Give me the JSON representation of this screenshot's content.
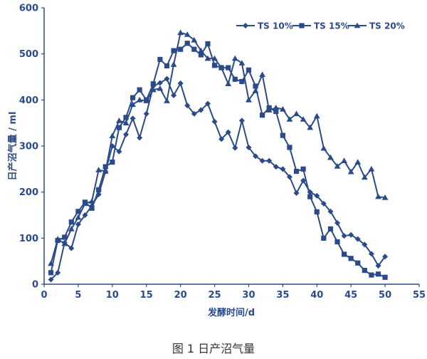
{
  "chart_data": {
    "type": "line",
    "xlabel": "发酵时间/d",
    "ylabel": "日产沼气量 / ml",
    "caption": "图 1 日产沼气量",
    "xlim": [
      0,
      55
    ],
    "ylim": [
      0,
      600
    ],
    "xticks": [
      0,
      5,
      10,
      15,
      20,
      25,
      30,
      35,
      40,
      45,
      50,
      55
    ],
    "yticks": [
      0,
      100,
      200,
      300,
      400,
      500,
      600
    ],
    "grid": false,
    "legend_position": "top-right",
    "color": "#2b4a8a",
    "series": [
      {
        "name": "TS 10%",
        "marker": "diamond",
        "x": [
          1,
          2,
          3,
          4,
          5,
          6,
          7,
          8,
          9,
          10,
          11,
          12,
          13,
          14,
          15,
          16,
          17,
          18,
          19,
          20,
          21,
          22,
          23,
          24,
          25,
          26,
          27,
          28,
          29,
          30,
          31,
          32,
          33,
          34,
          35,
          36,
          37,
          38,
          39,
          40,
          41,
          42,
          43,
          44,
          45,
          46,
          47,
          48,
          49,
          50
        ],
        "y": [
          10,
          25,
          90,
          78,
          130,
          150,
          170,
          195,
          245,
          300,
          288,
          325,
          360,
          318,
          370,
          430,
          437,
          446,
          410,
          436,
          388,
          370,
          378,
          392,
          353,
          315,
          330,
          296,
          355,
          297,
          278,
          268,
          268,
          255,
          250,
          233,
          198,
          225,
          200,
          192,
          175,
          158,
          133,
          105,
          107,
          98,
          86,
          66,
          40,
          60
        ]
      },
      {
        "name": "TS 15%",
        "marker": "square",
        "x": [
          1,
          2,
          3,
          4,
          5,
          6,
          7,
          8,
          9,
          10,
          11,
          12,
          13,
          14,
          15,
          16,
          17,
          18,
          19,
          20,
          21,
          22,
          23,
          24,
          25,
          26,
          27,
          28,
          29,
          30,
          31,
          32,
          33,
          34,
          35,
          36,
          37,
          38,
          39,
          40,
          41,
          42,
          43,
          44,
          45,
          46,
          47,
          48,
          49,
          50
        ],
        "y": [
          25,
          95,
          102,
          135,
          158,
          178,
          165,
          205,
          255,
          265,
          340,
          362,
          405,
          422,
          400,
          435,
          488,
          474,
          507,
          510,
          523,
          510,
          498,
          522,
          475,
          470,
          470,
          445,
          440,
          465,
          430,
          367,
          383,
          375,
          323,
          297,
          245,
          250,
          190,
          157,
          100,
          120,
          92,
          65,
          56,
          46,
          30,
          20,
          22,
          15
        ]
      },
      {
        "name": "TS 20%",
        "marker": "triangle",
        "x": [
          1,
          2,
          3,
          4,
          5,
          6,
          7,
          8,
          9,
          10,
          11,
          12,
          13,
          14,
          15,
          16,
          17,
          18,
          19,
          20,
          21,
          22,
          23,
          24,
          25,
          26,
          27,
          28,
          29,
          30,
          31,
          32,
          33,
          34,
          35,
          36,
          37,
          38,
          39,
          40,
          41,
          42,
          43,
          44,
          45,
          46,
          47,
          48,
          49,
          50
        ],
        "y": [
          45,
          98,
          88,
          120,
          145,
          175,
          180,
          248,
          245,
          322,
          355,
          350,
          390,
          400,
          398,
          422,
          425,
          398,
          477,
          546,
          542,
          530,
          507,
          490,
          490,
          470,
          435,
          490,
          480,
          400,
          420,
          455,
          378,
          383,
          380,
          358,
          370,
          358,
          340,
          365,
          295,
          275,
          256,
          268,
          244,
          265,
          232,
          250,
          190,
          188
        ]
      }
    ]
  }
}
